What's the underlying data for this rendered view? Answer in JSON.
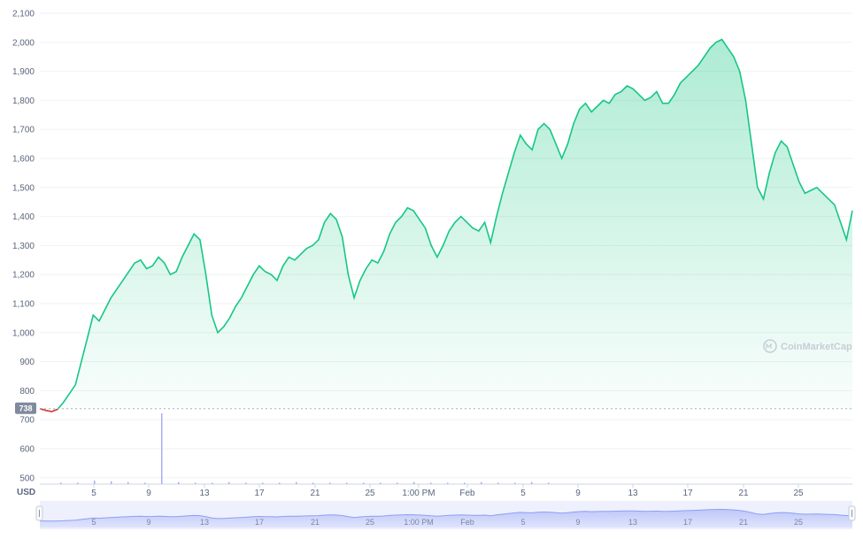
{
  "chart_data": {
    "type": "area",
    "currency_label": "USD",
    "watermark": "CoinMarketCap",
    "current_price_label": "738",
    "y_ticks": [
      "2,100",
      "2,000",
      "1,900",
      "1,800",
      "1,700",
      "1,600",
      "1,500",
      "1,400",
      "1,300",
      "1,200",
      "1,100",
      "1,000",
      "900",
      "800",
      "700",
      "600",
      "500"
    ],
    "ylim": [
      480,
      2100
    ],
    "x_ticks": [
      "5",
      "9",
      "13",
      "17",
      "21",
      "25",
      "1:00 PM",
      "Feb",
      "5",
      "9",
      "13",
      "17",
      "21",
      "25"
    ],
    "navigator_ticks": [
      "5",
      "9",
      "13",
      "17",
      "21",
      "25",
      "1:00 PM",
      "Feb",
      "5",
      "9",
      "13",
      "17",
      "21",
      "25"
    ],
    "grid": true,
    "colors": {
      "line": "#16c784",
      "area_top": "#c6f0dc",
      "line_start": "#ea3943",
      "navigator": "#8d9ff5",
      "price_marker": "#808a9d"
    },
    "series": [
      {
        "values": [
          738,
          732,
          728,
          736,
          760,
          790,
          820,
          900,
          980,
          1060,
          1040,
          1080,
          1120,
          1150,
          1180,
          1210,
          1240,
          1250,
          1220,
          1230,
          1260,
          1240,
          1200,
          1210,
          1260,
          1300,
          1340,
          1320,
          1200,
          1060,
          1000,
          1020,
          1050,
          1090,
          1120,
          1160,
          1200,
          1230,
          1210,
          1200,
          1180,
          1230,
          1260,
          1250,
          1270,
          1290,
          1300,
          1320,
          1380,
          1410,
          1390,
          1330,
          1200,
          1120,
          1180,
          1220,
          1250,
          1240,
          1280,
          1340,
          1380,
          1400,
          1430,
          1420,
          1390,
          1360,
          1300,
          1260,
          1300,
          1350,
          1380,
          1400,
          1380,
          1360,
          1350,
          1380,
          1310,
          1400,
          1480,
          1550,
          1620,
          1680,
          1650,
          1630,
          1700,
          1720,
          1700,
          1650,
          1600,
          1650,
          1720,
          1770,
          1790,
          1760,
          1780,
          1800,
          1790,
          1820,
          1830,
          1850,
          1840,
          1820,
          1800,
          1810,
          1830,
          1790,
          1790,
          1820,
          1860,
          1880,
          1900,
          1920,
          1950,
          1980,
          2000,
          2010,
          1980,
          1950,
          1900,
          1800,
          1650,
          1500,
          1460,
          1550,
          1620,
          1660,
          1640,
          1580,
          1520,
          1480,
          1490,
          1500,
          1480,
          1460,
          1440,
          1380,
          1320,
          1420
        ]
      }
    ],
    "volume_spikes": [
      0.02,
      0.02,
      0.05,
      0.04,
      0.03,
      0.02,
      1.0,
      0.03,
      0.02,
      0.02,
      0.03,
      0.02,
      0.02,
      0.02,
      0.03,
      0.02,
      0.02,
      0.02,
      0.02,
      0.02,
      0.02,
      0.03,
      0.02,
      0.02,
      0.02,
      0.03,
      0.02,
      0.02,
      0.03,
      0.02
    ]
  }
}
